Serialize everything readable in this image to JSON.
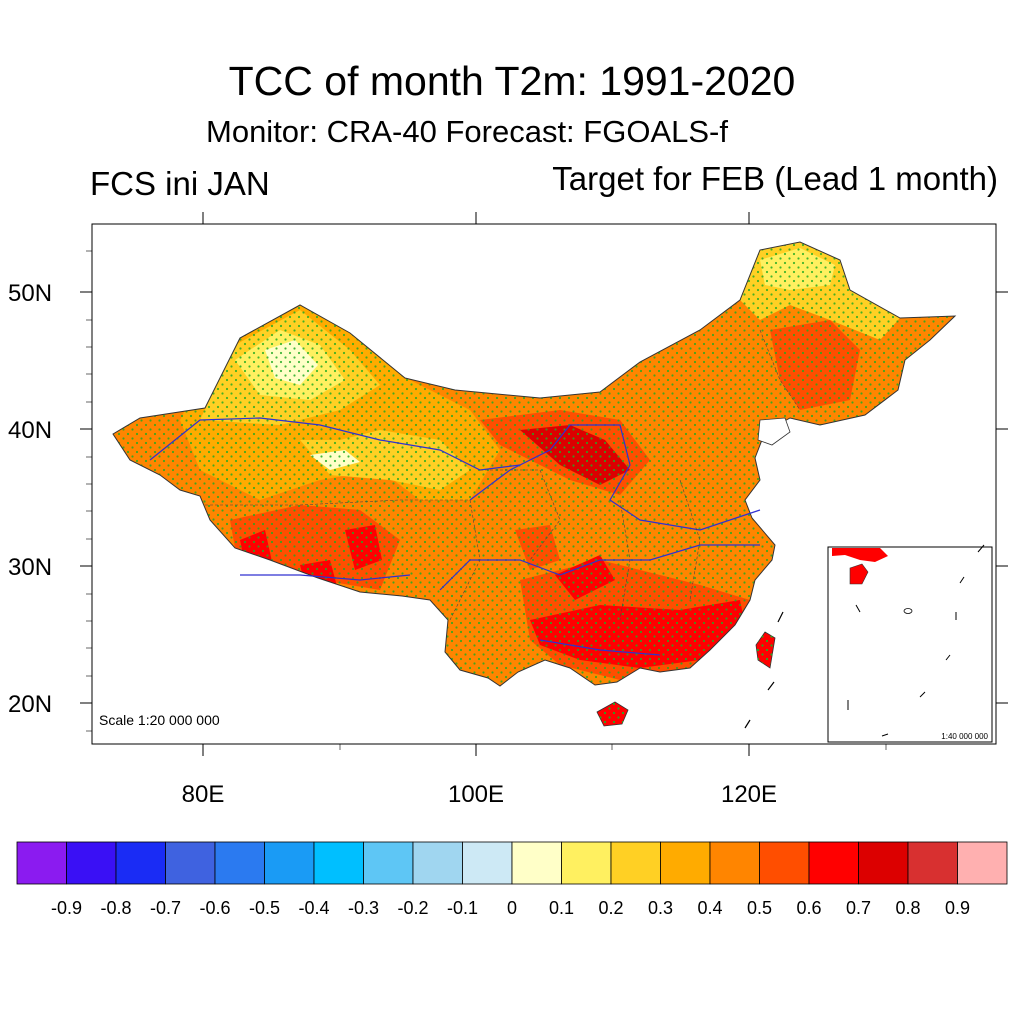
{
  "title": "TCC of month T2m: 1991-2020",
  "subtitle": "Monitor: CRA-40   Forecast: FGOALS-f",
  "left_label": "FCS ini JAN",
  "right_label": "Target for FEB (Lead 1 month)",
  "scale_main": "Scale 1:20 000 000",
  "scale_inset": "1:40 000 000",
  "axes": {
    "lat_ticks": [
      "50N",
      "40N",
      "30N",
      "20N"
    ],
    "lon_ticks": [
      "80E",
      "100E",
      "120E"
    ]
  },
  "colorbar": {
    "colors": [
      "#8b1bf0",
      "#3a10f5",
      "#1a2cf5",
      "#3f62e0",
      "#2b7af0",
      "#1a9bf5",
      "#00bfff",
      "#5ec6f5",
      "#a0d6f0",
      "#cde9f5",
      "#ffffc8",
      "#fff060",
      "#ffd024",
      "#ffab00",
      "#ff8500",
      "#ff4e00",
      "#ff0000",
      "#dc0000",
      "#d83030",
      "#ffb0b0"
    ],
    "labels": [
      "-0.9",
      "-0.8",
      "-0.7",
      "-0.6",
      "-0.5",
      "-0.4",
      "-0.3",
      "-0.2",
      "-0.1",
      "0",
      "0.1",
      "0.2",
      "0.3",
      "0.4",
      "0.5",
      "0.6",
      "0.7",
      "0.8",
      "0.9"
    ]
  },
  "map_colors": {
    "base": "#ff8500",
    "light": "#ffffc8",
    "yellow": "#fff060",
    "gold": "#ffd024",
    "amber": "#ffab00",
    "orange_red": "#ff4e00",
    "red": "#ff0000",
    "dark_red": "#dc0000",
    "stipple": "#22aa22",
    "river": "#3030d0"
  }
}
